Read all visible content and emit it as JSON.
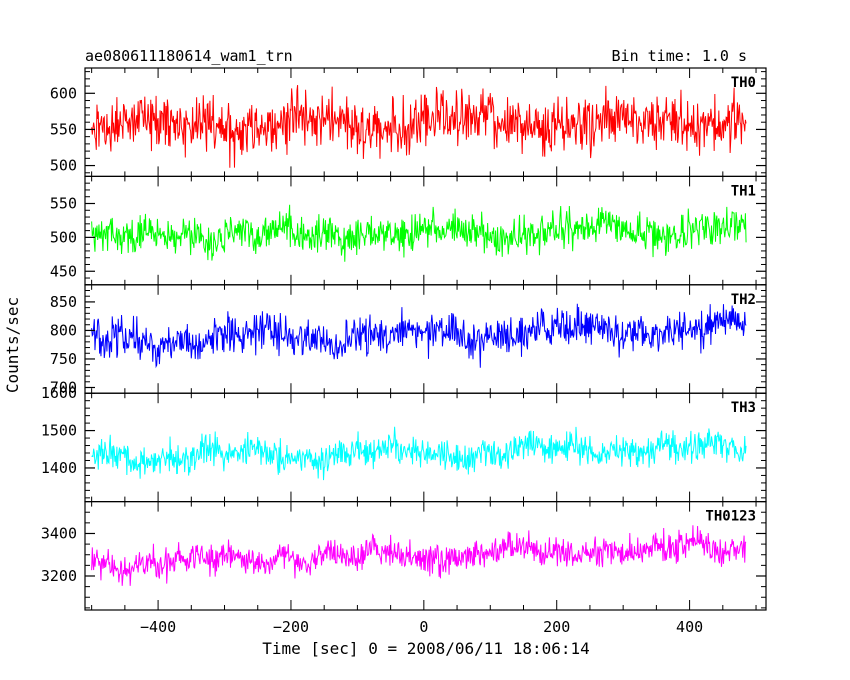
{
  "header": {
    "left_title": "ae080611180614_wam1_trn",
    "right_title": "Bin time: 1.0 s"
  },
  "chart_data": {
    "type": "line",
    "title": "ae080611180614_wam1_trn",
    "bin_time": "Bin time: 1.0 s",
    "xlabel": "Time [sec] 0 = 2008/06/11 18:06:14",
    "ylabel": "Counts/sec",
    "xlim": [
      -510,
      515
    ],
    "xticks": [
      -400,
      -200,
      0,
      200,
      400
    ],
    "xtick_labels": [
      "−400",
      "−200",
      "0",
      "200",
      "400"
    ],
    "x_range_of_data": [
      -500,
      485
    ],
    "panels": [
      {
        "name": "TH0",
        "color": "#ff0000",
        "ylim": [
          485,
          635
        ],
        "yticks": [
          500,
          550,
          600
        ],
        "ytick_labels": [
          "500",
          "550",
          "600"
        ],
        "mean_start": 555,
        "mean_end": 562,
        "spread": 45,
        "wave": 8,
        "minor_step": 10
      },
      {
        "name": "TH1",
        "color": "#00ff00",
        "ylim": [
          430,
          590
        ],
        "yticks": [
          450,
          500,
          550
        ],
        "ytick_labels": [
          "450",
          "500",
          "550"
        ],
        "mean_start": 500,
        "mean_end": 512,
        "spread": 32,
        "wave": 6,
        "minor_step": 10
      },
      {
        "name": "TH2",
        "color": "#0000ff",
        "ylim": [
          690,
          880
        ],
        "yticks": [
          700,
          750,
          800,
          850
        ],
        "ytick_labels": [
          "700",
          "750",
          "800",
          "850"
        ],
        "mean_start": 780,
        "mean_end": 805,
        "spread": 40,
        "wave": 10,
        "minor_step": 10
      },
      {
        "name": "TH3",
        "color": "#00ffff",
        "ylim": [
          1310,
          1600
        ],
        "yticks": [
          1400,
          1500,
          1600
        ],
        "ytick_labels": [
          "1400",
          "1500",
          "1600"
        ],
        "mean_start": 1430,
        "mean_end": 1455,
        "spread": 50,
        "wave": 12,
        "minor_step": 20
      },
      {
        "name": "TH0123",
        "color": "#ff00ff",
        "ylim": [
          3040,
          3550
        ],
        "yticks": [
          3200,
          3400
        ],
        "ytick_labels": [
          "3200",
          "3400"
        ],
        "mean_start": 3260,
        "mean_end": 3340,
        "spread": 85,
        "wave": 20,
        "minor_step": 50
      }
    ]
  }
}
